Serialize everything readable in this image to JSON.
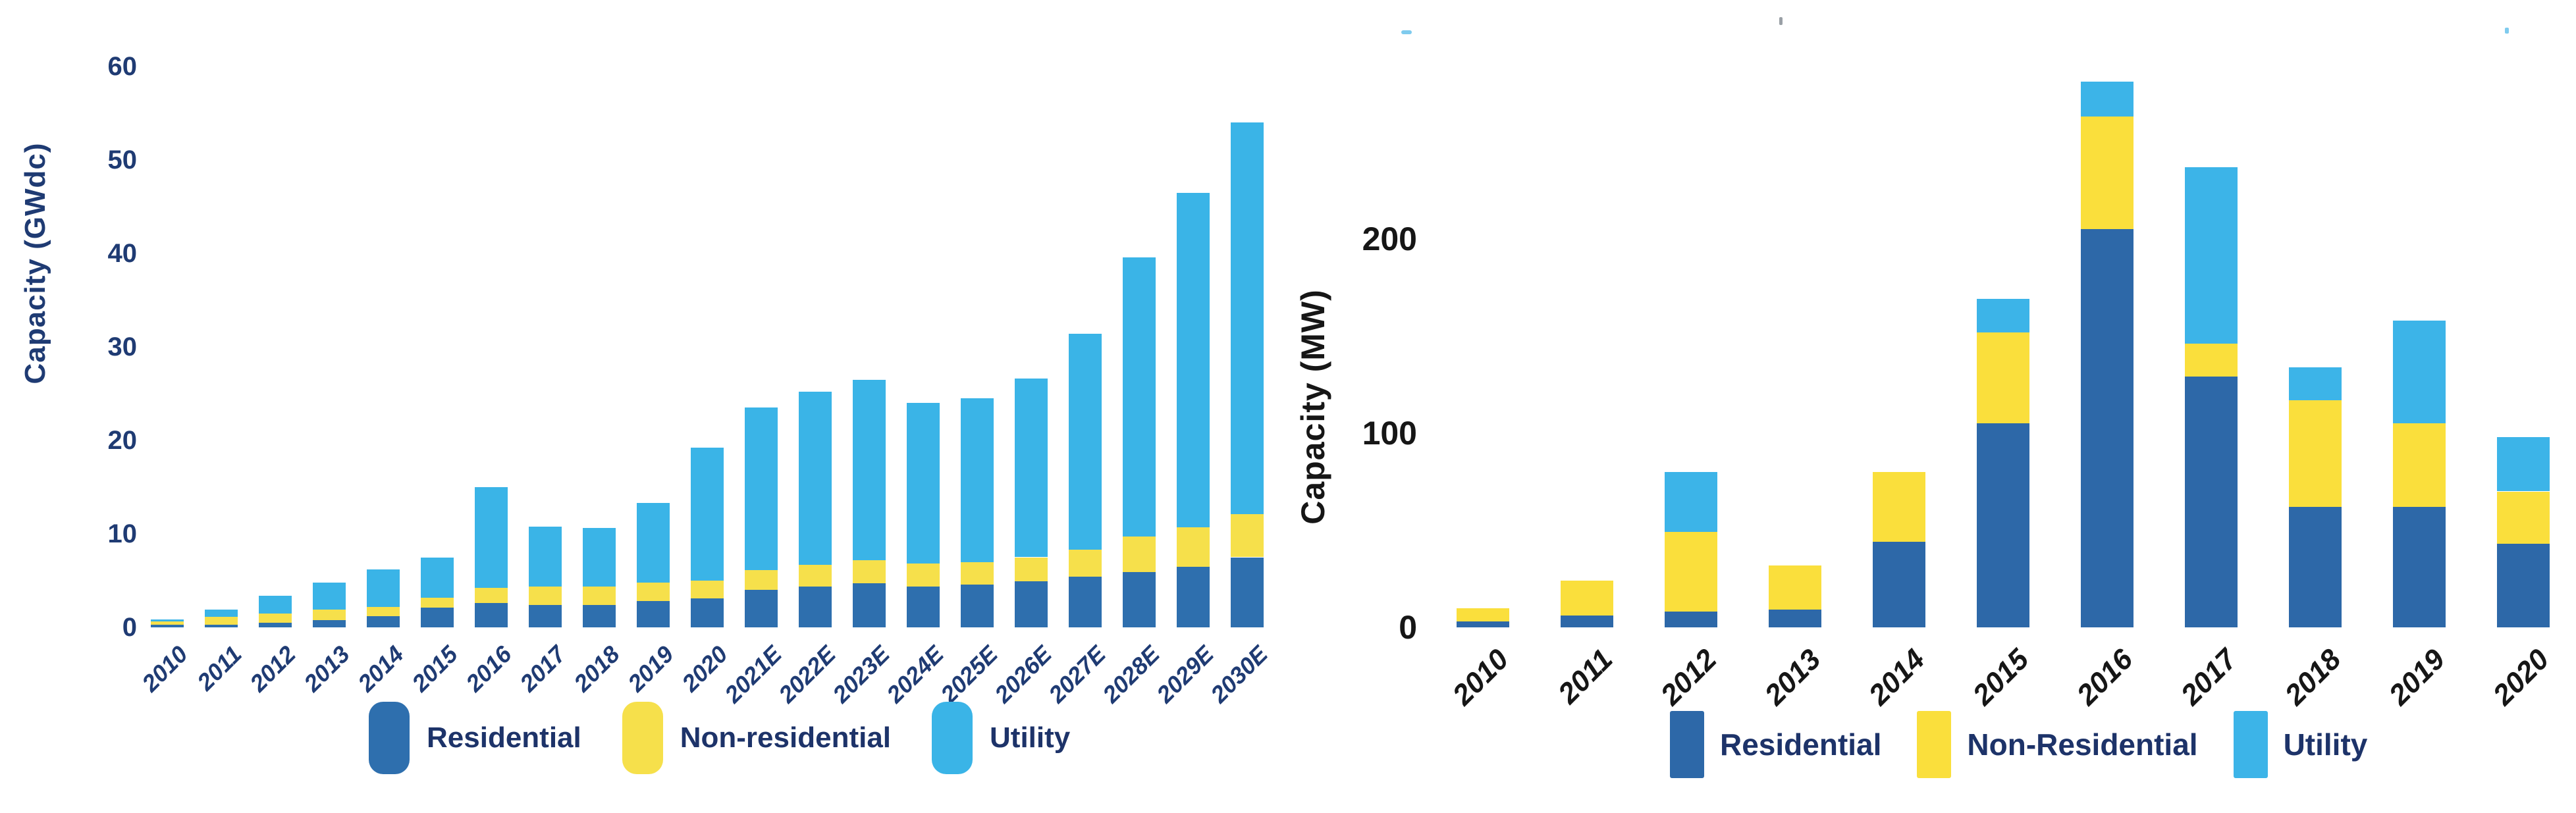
{
  "page": {
    "background": "#ffffff"
  },
  "chart_data": [
    {
      "id": "us-solar-capacity-forecast",
      "type": "bar",
      "stacked": true,
      "title": "",
      "ylabel": "Capacity (GWdc)",
      "xlabel": "",
      "ylim": [
        0,
        60
      ],
      "yticks": [
        0,
        10,
        20,
        30,
        40,
        50,
        60
      ],
      "grid": false,
      "legend_position": "bottom",
      "axis_text_color": "#1f3b73",
      "categories": [
        "2010",
        "2011",
        "2012",
        "2013",
        "2014",
        "2015",
        "2016",
        "2017",
        "2018",
        "2019",
        "2020",
        "2021E",
        "2022E",
        "2023E",
        "2024E",
        "2025E",
        "2026E",
        "2027E",
        "2028E",
        "2029E",
        "2030E"
      ],
      "series": [
        {
          "name": "Residential",
          "color": "#2e6fae",
          "values": [
            0.3,
            0.3,
            0.5,
            0.8,
            1.2,
            2.1,
            2.6,
            2.4,
            2.4,
            2.8,
            3.1,
            4.0,
            4.4,
            4.7,
            4.4,
            4.6,
            4.9,
            5.4,
            5.9,
            6.5,
            7.5
          ]
        },
        {
          "name": "Non-residential",
          "color": "#f6e04b",
          "values": [
            0.3,
            0.8,
            1.0,
            1.1,
            1.0,
            1.1,
            1.6,
            2.0,
            2.0,
            2.0,
            1.9,
            2.1,
            2.3,
            2.5,
            2.4,
            2.4,
            2.6,
            2.9,
            3.8,
            4.2,
            4.6
          ]
        },
        {
          "name": "Utility",
          "color": "#3ab4e7",
          "values": [
            0.25,
            0.8,
            1.9,
            2.9,
            4.0,
            4.3,
            10.8,
            6.4,
            6.2,
            8.5,
            14.2,
            17.4,
            18.5,
            19.3,
            17.2,
            17.5,
            19.1,
            23.1,
            29.9,
            35.8,
            41.9
          ]
        }
      ],
      "totals": [
        0.85,
        1.9,
        3.4,
        4.8,
        6.2,
        7.5,
        15.0,
        10.8,
        10.6,
        13.3,
        19.2,
        23.5,
        25.2,
        26.5,
        24.0,
        24.5,
        26.6,
        31.4,
        39.6,
        46.5,
        54.0
      ],
      "legend_labels": [
        "Residential",
        "Non-residential",
        "Utility"
      ],
      "legend_text_color": "#1d3369"
    },
    {
      "id": "state-solar-installed-capacity",
      "type": "bar",
      "stacked": true,
      "title": "",
      "ylabel": "Capacity (MW)",
      "xlabel": "",
      "ylim": [
        0,
        290
      ],
      "yticks": [
        0,
        100,
        200
      ],
      "grid": false,
      "legend_position": "bottom",
      "axis_text_color": "#161616",
      "categories": [
        "2010",
        "2011",
        "2012",
        "2013",
        "2014",
        "2015",
        "2016",
        "2017",
        "2018",
        "2019",
        "2020"
      ],
      "series": [
        {
          "name": "Residential",
          "color": "#2d68a8",
          "values": [
            3,
            6,
            8,
            9,
            44,
            105,
            205,
            129,
            62,
            62,
            43
          ]
        },
        {
          "name": "Non-Residential",
          "color": "#fadf3c",
          "values": [
            7,
            18,
            41,
            23,
            36,
            47,
            58,
            17,
            55,
            43,
            27
          ]
        },
        {
          "name": "Utility",
          "color": "#3cb4e8",
          "values": [
            0,
            0,
            31,
            0,
            0,
            17,
            18,
            91,
            17,
            53,
            28
          ]
        }
      ],
      "totals": [
        10,
        24,
        80,
        32,
        80,
        169,
        281,
        237,
        134,
        158,
        98
      ],
      "legend_labels": [
        "Residential",
        "Non-Residential",
        "Utility"
      ],
      "legend_text_color": "#1d3369"
    }
  ],
  "stray_marks": [
    {
      "color": "#7fcbee"
    },
    {
      "color": "#9aa0a6"
    },
    {
      "color": "#7fcbee"
    }
  ]
}
